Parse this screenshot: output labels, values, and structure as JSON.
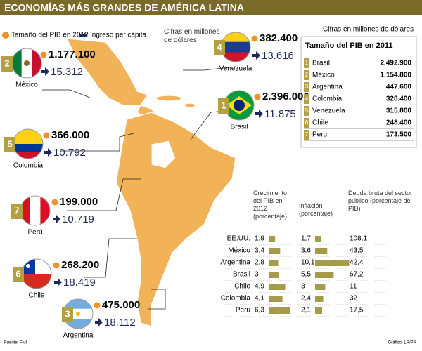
{
  "header": {
    "title": "ECONOMÍAS MÁS GRANDES DE AMÉRICA LATINA"
  },
  "legend": {
    "gdp": "Tamaño del PIB en 2012",
    "income": "Ingreso per cápita",
    "note": "Cifras en millones de dólares"
  },
  "countries": [
    {
      "rank": "2",
      "name": "México",
      "gdp": "1.177.100",
      "income": "15.312"
    },
    {
      "rank": "4",
      "name": "Venezuela",
      "gdp": "382.400",
      "income": "13.616"
    },
    {
      "rank": "1",
      "name": "Brasil",
      "gdp": "2.396.000",
      "income": "11.875"
    },
    {
      "rank": "5",
      "name": "Colombia",
      "gdp": "366.000",
      "income": "10.792"
    },
    {
      "rank": "7",
      "name": "Perú",
      "gdp": "199.000",
      "income": "10.719"
    },
    {
      "rank": "6",
      "name": "Chile",
      "gdp": "268.200",
      "income": "18.419"
    },
    {
      "rank": "3",
      "name": "Argentina",
      "gdp": "475.000",
      "income": "18.112"
    }
  ],
  "table2011": {
    "note": "Cifras en millones de dólares",
    "title": "Tamaño del PIB en 2011",
    "rows": [
      [
        "1",
        "Brasil",
        "2.492.900"
      ],
      [
        "2",
        "México",
        "1.154.800"
      ],
      [
        "3",
        "Argentina",
        "447.600"
      ],
      [
        "4",
        "Colombia",
        "328.400"
      ],
      [
        "5",
        "Venezuela",
        "315.800"
      ],
      [
        "6",
        "Chile",
        "248.400"
      ],
      [
        "7",
        "Peru",
        "173.500"
      ]
    ]
  },
  "stats": {
    "headers": [
      "Crecimiento del PIB en 2012 (porcentaje)",
      "Inflación (porcentaje)",
      "Deuda bruta del sector público (porcentaje del PIB)"
    ],
    "rows": [
      {
        "country": "EE.UU.",
        "growth": {
          "value": 1.9,
          "label": "1,9"
        },
        "inflation": {
          "value": 1.7,
          "label": "1,7"
        },
        "debt": "108,1"
      },
      {
        "country": "México",
        "growth": {
          "value": 3.4,
          "label": "3,4"
        },
        "inflation": {
          "value": 3.6,
          "label": "3,6"
        },
        "debt": "43,5"
      },
      {
        "country": "Argentina",
        "growth": {
          "value": 2.8,
          "label": "2,8"
        },
        "inflation": {
          "value": 10.1,
          "label": "10,1"
        },
        "debt": "42,4"
      },
      {
        "country": "Brasil",
        "growth": 3,
        "inflation": {
          "value": 5.5,
          "label": "5,5"
        },
        "debt": "67,2"
      },
      {
        "country": "Chile",
        "growth": {
          "value": 4.9,
          "label": "4,9"
        },
        "inflation": 3,
        "debt": "11"
      },
      {
        "country": "Colombia",
        "growth": {
          "value": 4.1,
          "label": "4,1"
        },
        "inflation": {
          "value": 2.4,
          "label": "2,4"
        },
        "debt": "32"
      },
      {
        "country": "Perú",
        "growth": {
          "value": 6.3,
          "label": "6,3"
        },
        "inflation": {
          "value": 2.1,
          "label": "2,1"
        },
        "debt": "17,5"
      }
    ]
  },
  "footer": {
    "source": "Fuente: FMI",
    "credit": "Gráfico: LR/PR"
  }
}
